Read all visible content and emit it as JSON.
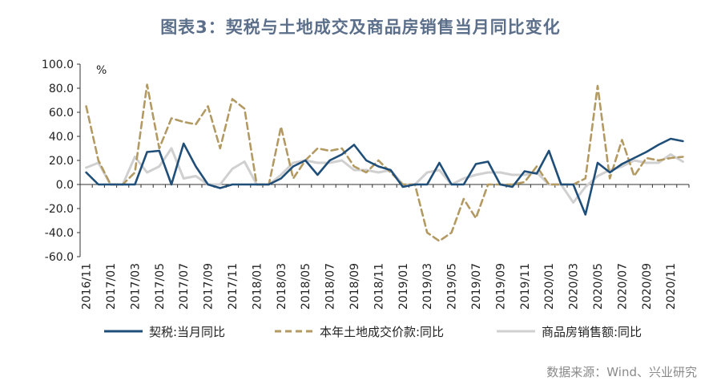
{
  "title": "图表3：契税与土地成交及商品房销售当月同比变化",
  "source": "数据来源：Wind、兴业研究",
  "chart_data": {
    "type": "line",
    "title": "图表3：契税与土地成交及商品房销售当月同比变化",
    "ylabel": "%",
    "ylim": [
      -60,
      100
    ],
    "yticks": [
      100,
      80,
      60,
      40,
      20,
      0,
      -20,
      -40,
      -60
    ],
    "ytick_labels": [
      "100.0",
      "80.0",
      "60.0",
      "40.0",
      "20.0",
      "0.0",
      "-20.0",
      "-40.0",
      "-60.0"
    ],
    "x": [
      "2016/11",
      "2016/12",
      "2017/01",
      "2017/02",
      "2017/03",
      "2017/04",
      "2017/05",
      "2017/06",
      "2017/07",
      "2017/08",
      "2017/09",
      "2017/10",
      "2017/11",
      "2017/12",
      "2018/01",
      "2018/02",
      "2018/03",
      "2018/04",
      "2018/05",
      "2018/06",
      "2018/07",
      "2018/08",
      "2018/09",
      "2018/10",
      "2018/11",
      "2018/12",
      "2019/01",
      "2019/02",
      "2019/03",
      "2019/04",
      "2019/05",
      "2019/06",
      "2019/07",
      "2019/08",
      "2019/09",
      "2019/10",
      "2019/11",
      "2019/12",
      "2020/01",
      "2020/02",
      "2020/03",
      "2020/04",
      "2020/05",
      "2020/06",
      "2020/07",
      "2020/08",
      "2020/09",
      "2020/10",
      "2020/11",
      "2020/12"
    ],
    "xtick_labels": [
      "2016/11",
      "2017/01",
      "2017/03",
      "2017/05",
      "2017/07",
      "2017/09",
      "2017/11",
      "2018/01",
      "2018/03",
      "2018/05",
      "2018/07",
      "2018/09",
      "2018/11",
      "2019/01",
      "2019/03",
      "2019/05",
      "2019/07",
      "2019/09",
      "2019/11",
      "2020/01",
      "2020/03",
      "2020/05",
      "2020/07",
      "2020/09",
      "2020/11"
    ],
    "grid": false,
    "legend_position": "bottom",
    "series": [
      {
        "name": "契税:当月同比",
        "color": "#1f4e79",
        "style": "solid",
        "values": [
          10,
          0,
          0,
          0,
          0,
          27,
          28,
          0,
          34,
          15,
          0,
          -3,
          0,
          0,
          0,
          0,
          5,
          15,
          20,
          8,
          20,
          25,
          33,
          20,
          15,
          12,
          -2,
          0,
          0,
          18,
          0,
          0,
          17,
          19,
          0,
          -2,
          11,
          9,
          28,
          0,
          0,
          -25,
          18,
          10,
          17,
          22,
          27,
          33,
          38,
          36
        ]
      },
      {
        "name": "本年土地成交价款:同比",
        "color": "#b39a62",
        "style": "dashed",
        "values": [
          65,
          20,
          0,
          0,
          10,
          83,
          30,
          55,
          52,
          50,
          65,
          30,
          71,
          63,
          0,
          0,
          48,
          5,
          20,
          30,
          28,
          30,
          15,
          10,
          20,
          10,
          0,
          0,
          -40,
          -47,
          -40,
          -12,
          -28,
          0,
          0,
          0,
          2,
          15,
          0,
          0,
          0,
          5,
          82,
          5,
          37,
          7,
          22,
          20,
          22,
          23
        ]
      },
      {
        "name": "商品房销售额:同比",
        "color": "#d0d0d0",
        "style": "solid",
        "values": [
          14,
          18,
          0,
          0,
          23,
          10,
          15,
          30,
          5,
          7,
          0,
          0,
          13,
          19,
          0,
          0,
          8,
          18,
          20,
          18,
          18,
          20,
          12,
          12,
          10,
          12,
          0,
          0,
          10,
          12,
          0,
          5,
          8,
          10,
          10,
          8,
          8,
          10,
          0,
          0,
          -15,
          -2,
          7,
          12,
          15,
          20,
          18,
          18,
          25,
          19
        ]
      }
    ]
  }
}
